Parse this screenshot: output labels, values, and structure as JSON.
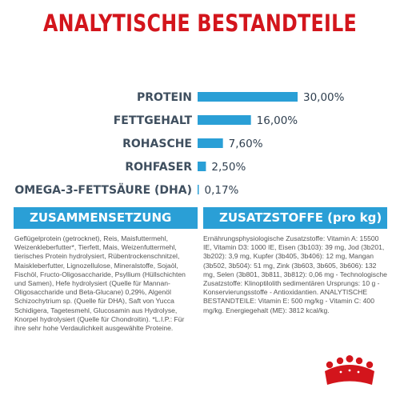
{
  "title": "ANALYTISCHE BESTANDTEILE",
  "chart_data": {
    "type": "bar",
    "orientation": "horizontal",
    "categories": [
      "PROTEIN",
      "FETTGEHALT",
      "ROHASCHE",
      "ROHFASER",
      "OMEGA-3-FETTSÄURE (DHA)"
    ],
    "values": [
      30.0,
      16.0,
      7.6,
      2.5,
      0.17
    ],
    "value_labels": [
      "30,00%",
      "16,00%",
      "7,60%",
      "2,50%",
      "0,17%"
    ],
    "unit": "%",
    "xlim": [
      0,
      30
    ],
    "grid": false,
    "legend": "none",
    "bar_color": "#2a9fd6"
  },
  "composition": {
    "header": "ZUSAMMENSETZUNG",
    "text": "Geflügelprotein (getrocknet), Reis, Maisfuttermehl, Weizenkleberfutter*, Tierfett, Mais, Weizenfuttermehl, tierisches Protein hydrolysiert, Rübentrockenschnitzel, Maiskleberfutter, Lignozellulose, Mineralstoffe, Sojaöl, Fischöl, Fructo-Oligosaccharide, Psyllium (Hüllschichten und Samen), Hefe hydrolysiert (Quelle für Mannan-Oligosaccharide und Beta-Glucane) 0,29%, Algenöl Schizochytrium sp. (Quelle für DHA), Saft von Yucca Schidigera, Tagetesmehl, Glucosamin aus Hydrolyse, Knorpel hydrolysiert (Quelle für Chondroitin). *L.I.P.: Für ihre sehr hohe Verdaulichkeit ausgewählte Proteine."
  },
  "additives": {
    "header": "ZUSATZSTOFFE (pro kg)",
    "text": "Ernährungsphysiologische Zusatzstoffe: Vitamin A: 15500 IE, Vitamin D3: 1000 IE, Eisen (3b103): 39 mg, Jod (3b201, 3b202): 3,9 mg, Kupfer (3b405, 3b406): 12 mg, Mangan (3b502, 3b504): 51 mg, Zink (3b603, 3b605, 3b606): 132 mg, Selen (3b801, 3b811, 3b812): 0,06 mg - Technologische Zusatzstoffe: Klinoptilolith sedimentären Ursprungs: 10 g - Konservierungsstoffe - Antioxidantien. ANALYTISCHE BESTANDTEILE: Vitamin E: 500 mg/kg - Vitamin C: 400 mg/kg. Energiegehalt (ME): 3812 kcal/kg."
  },
  "brand_color": "#d3151c"
}
